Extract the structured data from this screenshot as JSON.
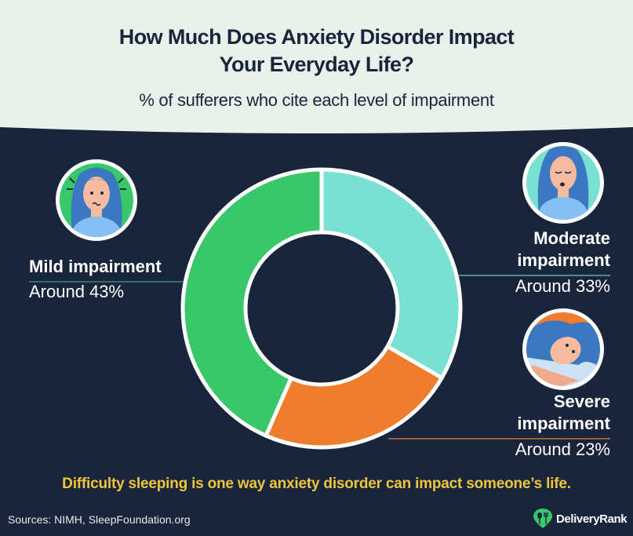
{
  "header": {
    "title_line1": "How Much Does Anxiety Disorder Impact",
    "title_line2": "Your Everyday Life?",
    "subtitle": "% of sufferers who cite each level of impairment"
  },
  "labels": {
    "mild": {
      "name": "Mild impairment",
      "value": "Around 43%"
    },
    "moderate": {
      "name_line1": "Moderate",
      "name_line2": "impairment",
      "value": "Around 33%"
    },
    "severe": {
      "name_line1": "Severe",
      "name_line2": "impairment",
      "value": "Around 23%"
    }
  },
  "icons": {
    "mild": "woman-stressed-icon",
    "moderate": "woman-tired-icon",
    "severe": "woman-lying-awake-icon"
  },
  "footer": {
    "note": "Difficulty sleeping is one way anxiety disorder can impact someone’s life.",
    "sources": "Sources: NIMH, SleepFoundation.org",
    "brand": "DeliveryRank"
  },
  "colors": {
    "background": "#19253a",
    "header_bg": "#e8f1ea",
    "mild": "#38c86a",
    "moderate": "#7ae0d2",
    "severe": "#ef7d2c",
    "note": "#f0c53a"
  },
  "chart_data": {
    "type": "pie",
    "variant": "donut",
    "title": "How Much Does Anxiety Disorder Impact Your Everyday Life?",
    "subtitle": "% of sufferers who cite each level of impairment",
    "categories": [
      "Moderate impairment",
      "Severe impairment",
      "Mild impairment"
    ],
    "values": [
      33,
      23,
      43
    ],
    "value_labels": [
      "Around 33%",
      "Around 23%",
      "Around 43%"
    ],
    "colors": [
      "#7ae0d2",
      "#ef7d2c",
      "#38c86a"
    ],
    "start_angle": "12 o'clock, clockwise",
    "legend": "direct labels (left and right)"
  }
}
